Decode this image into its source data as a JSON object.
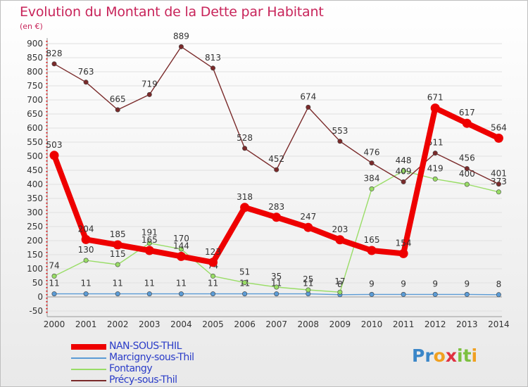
{
  "title": "Evolution du Montant de la Dette par Habitant",
  "unit_label": "(en €)",
  "logo": {
    "text": "Proxiti",
    "letters": [
      "P",
      "r",
      "o",
      "x",
      "i",
      "t",
      "i"
    ],
    "colors": [
      "#3a86c8",
      "#3a86c8",
      "#f0a020",
      "#e03040",
      "#7cc040",
      "#7cc040",
      "#f0a020"
    ]
  },
  "chart_data": {
    "type": "line",
    "title": "Evolution du Montant de la Dette par Habitant",
    "ylabel": "(en €)",
    "xlabel": "",
    "x": [
      "2000",
      "2001",
      "2002",
      "2003",
      "2004",
      "2005",
      "2006",
      "2007",
      "2008",
      "2009",
      "2010",
      "2011",
      "2012",
      "2013",
      "2014"
    ],
    "ylim": [
      -50,
      900
    ],
    "yticks": [
      -50,
      0,
      50,
      100,
      150,
      200,
      250,
      300,
      350,
      400,
      450,
      500,
      550,
      600,
      650,
      700,
      750,
      800,
      850,
      900
    ],
    "grid": "horizontal",
    "legend_position": "bottom-left",
    "series": [
      {
        "name": "NAN-SOUS-THIL",
        "color": "#ee0000",
        "emphasis": true,
        "values": [
          503,
          204,
          185,
          165,
          144,
          123,
          318,
          283,
          247,
          203,
          165,
          154,
          671,
          617,
          564
        ]
      },
      {
        "name": "Marcigny-sous-Thil",
        "color": "#5b9bd5",
        "emphasis": false,
        "values": [
          11,
          11,
          11,
          11,
          11,
          11,
          11,
          11,
          11,
          8,
          9,
          9,
          9,
          9,
          8
        ]
      },
      {
        "name": "Fontangy",
        "color": "#99dd66",
        "emphasis": false,
        "values": [
          74,
          130,
          115,
          191,
          170,
          74,
          51,
          35,
          25,
          17,
          384,
          448,
          419,
          400,
          373
        ]
      },
      {
        "name": "Précy-sous-Thil",
        "color": "#7a2a2a",
        "emphasis": false,
        "values": [
          828,
          763,
          665,
          719,
          889,
          813,
          528,
          452,
          674,
          553,
          476,
          409,
          511,
          456,
          401
        ]
      }
    ]
  }
}
